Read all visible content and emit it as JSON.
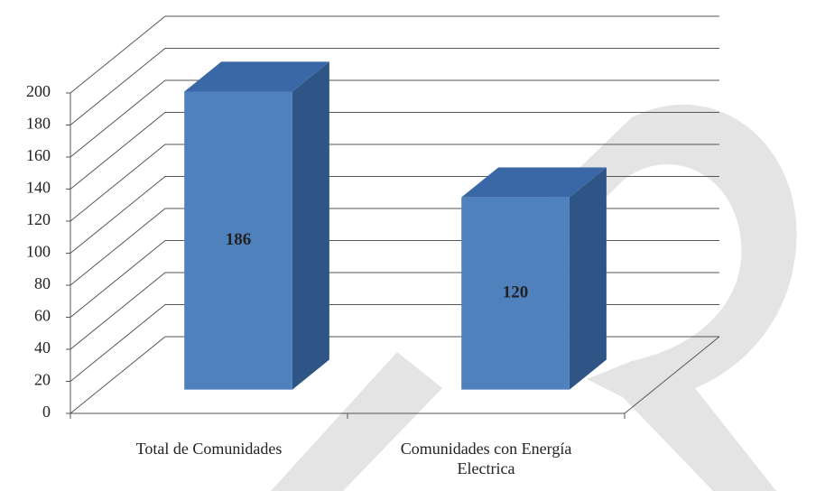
{
  "chart_data": {
    "type": "bar3d",
    "categories": [
      "Total de Comunidades",
      "Comunidades con Energía Electrica"
    ],
    "values": [
      186,
      120
    ],
    "color": "#4f81bd",
    "ylim": [
      0,
      200
    ],
    "yticks": [
      0,
      20,
      40,
      60,
      80,
      100,
      120,
      140,
      160,
      180,
      200
    ],
    "grid": true
  }
}
